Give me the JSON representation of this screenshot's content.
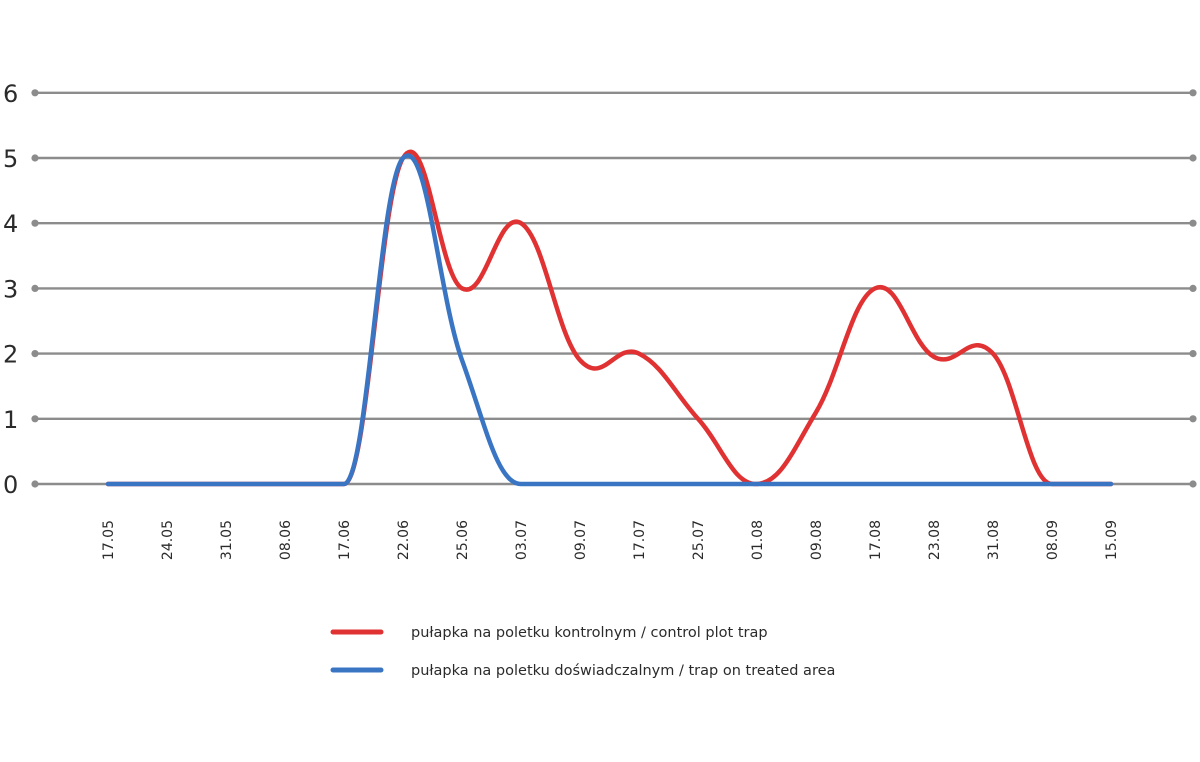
{
  "chart_data": {
    "type": "line",
    "title": "",
    "xlabel": "",
    "ylabel": "",
    "categories": [
      "17.05",
      "24.05",
      "31.05",
      "08.06",
      "17.06",
      "22.06",
      "25.06",
      "03.07",
      "09.07",
      "17.07",
      "25.07",
      "01.08",
      "09.08",
      "17.08",
      "23.08",
      "31.08",
      "08.09",
      "15.09"
    ],
    "ylim": [
      0,
      6
    ],
    "yticks": [
      "0",
      "1",
      "2",
      "3",
      "4",
      "5",
      "6"
    ],
    "grid": true,
    "smooth": true,
    "legend_position": "bottom-center",
    "series": [
      {
        "name": "pułapka na poletku kontrolnym / control plot trap",
        "color": "#e03232",
        "values": [
          0,
          0,
          0,
          0,
          0,
          5,
          3,
          4,
          1.9,
          2,
          1,
          0,
          1.1,
          3,
          1.95,
          2,
          0,
          0
        ]
      },
      {
        "name": "pułapka na poletku doświadczalnym / trap on treated area",
        "color": "#3a75c4",
        "values": [
          0,
          0,
          0,
          0,
          0,
          5,
          1.9,
          0,
          0,
          0,
          0,
          0,
          0,
          0,
          0,
          0,
          0,
          0
        ]
      }
    ]
  }
}
